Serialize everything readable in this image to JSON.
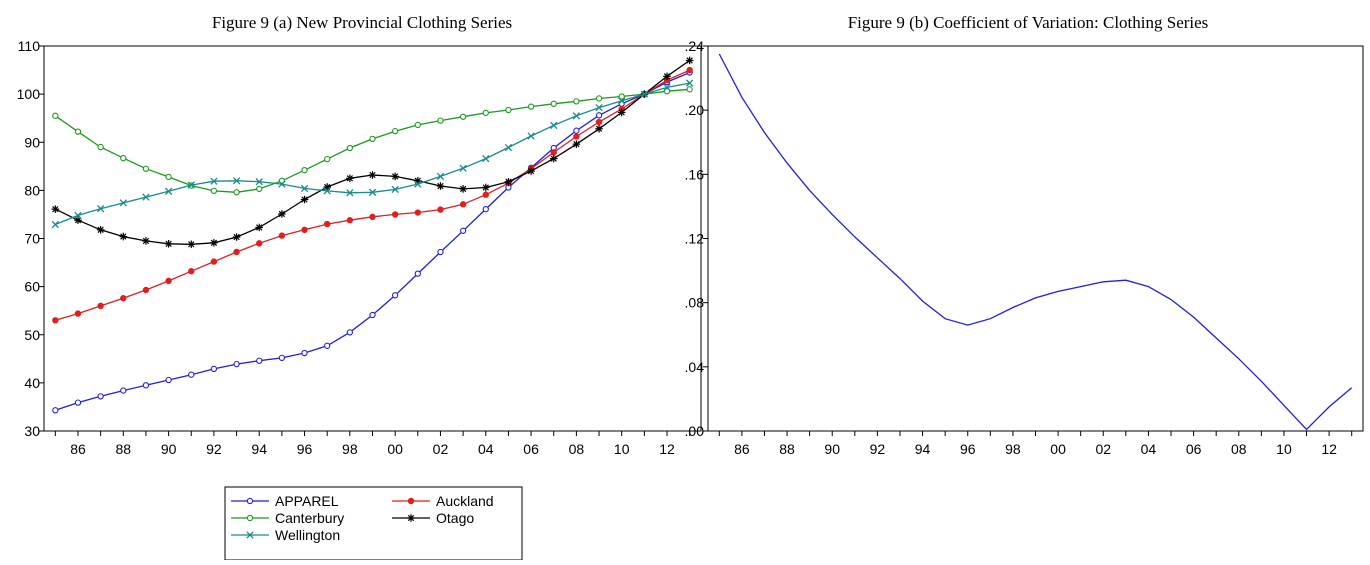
{
  "charts": [
    {
      "id": "a",
      "title": "Figure 9 (a) New Provincial Clothing Series",
      "type": "line",
      "x_tick_labels": [
        "86",
        "88",
        "90",
        "92",
        "94",
        "96",
        "98",
        "00",
        "02",
        "04",
        "06",
        "08",
        "10",
        "12"
      ],
      "y_tick_labels": [
        "30",
        "40",
        "50",
        "60",
        "70",
        "80",
        "90",
        "100",
        "110"
      ],
      "xlim": [
        1984.5,
        2013.5
      ],
      "ylim": [
        30,
        110
      ],
      "x": [
        1985,
        1986,
        1987,
        1988,
        1989,
        1990,
        1991,
        1992,
        1993,
        1994,
        1995,
        1996,
        1997,
        1998,
        1999,
        2000,
        2001,
        2002,
        2003,
        2004,
        2005,
        2006,
        2007,
        2008,
        2009,
        2010,
        2011,
        2012,
        2013
      ],
      "legend_position": "below",
      "series": [
        {
          "name": "APPAREL",
          "color": "#1f1fe0",
          "marker": "circle",
          "values": [
            34.3,
            35.9,
            37.2,
            38.4,
            39.5,
            40.6,
            41.7,
            42.9,
            43.9,
            44.6,
            45.2,
            46.2,
            47.7,
            50.5,
            54.1,
            58.2,
            62.7,
            67.2,
            71.6,
            76.1,
            80.6,
            84.7,
            88.8,
            92.4,
            95.6,
            98.0,
            100.0,
            102.5,
            104.5
          ]
        },
        {
          "name": "Auckland",
          "color": "#e01f1f",
          "marker": "dot",
          "values": [
            53.0,
            54.4,
            56.0,
            57.6,
            59.3,
            61.2,
            63.2,
            65.2,
            67.2,
            69.0,
            70.6,
            71.8,
            73.0,
            73.8,
            74.5,
            75.0,
            75.4,
            76.0,
            77.1,
            79.1,
            81.5,
            84.5,
            87.9,
            91.2,
            94.2,
            96.9,
            100.0,
            102.9,
            105.0
          ]
        },
        {
          "name": "Canterbury",
          "color": "#1a9a1a",
          "marker": "circle",
          "values": [
            95.5,
            92.2,
            89.0,
            86.7,
            84.5,
            82.8,
            81.0,
            79.9,
            79.6,
            80.3,
            82.0,
            84.2,
            86.5,
            88.8,
            90.7,
            92.3,
            93.6,
            94.5,
            95.3,
            96.1,
            96.7,
            97.4,
            98.0,
            98.5,
            99.1,
            99.5,
            100.0,
            100.6,
            101.0
          ]
        },
        {
          "name": "Otago",
          "color": "#000000",
          "marker": "star",
          "values": [
            76.1,
            73.8,
            71.8,
            70.4,
            69.5,
            68.9,
            68.8,
            69.1,
            70.3,
            72.3,
            75.1,
            78.1,
            80.7,
            82.5,
            83.2,
            82.9,
            82.0,
            80.9,
            80.3,
            80.6,
            81.8,
            84.0,
            86.6,
            89.6,
            92.8,
            96.2,
            100.0,
            103.7,
            107.0
          ]
        },
        {
          "name": "Wellington",
          "color": "#1a8a8a",
          "marker": "x",
          "values": [
            72.9,
            74.8,
            76.2,
            77.4,
            78.6,
            79.8,
            81.1,
            81.9,
            82.0,
            81.8,
            81.3,
            80.4,
            79.9,
            79.5,
            79.6,
            80.2,
            81.3,
            82.9,
            84.6,
            86.6,
            88.9,
            91.3,
            93.5,
            95.5,
            97.2,
            98.6,
            100.0,
            101.4,
            102.3
          ]
        }
      ]
    },
    {
      "id": "b",
      "title": "Figure 9 (b) Coefficient of Variation: Clothing Series",
      "type": "line",
      "x_tick_labels": [
        "86",
        "88",
        "90",
        "92",
        "94",
        "96",
        "98",
        "00",
        "02",
        "04",
        "06",
        "08",
        "10",
        "12"
      ],
      "y_tick_labels": [
        ".00",
        ".04",
        ".08",
        ".12",
        ".16",
        ".20",
        ".24"
      ],
      "xlim": [
        1984.5,
        2013.5
      ],
      "ylim": [
        0.0,
        0.24
      ],
      "x": [
        1985,
        1986,
        1987,
        1988,
        1989,
        1990,
        1991,
        1992,
        1993,
        1994,
        1995,
        1996,
        1997,
        1998,
        1999,
        2000,
        2001,
        2002,
        2003,
        2004,
        2005,
        2006,
        2007,
        2008,
        2009,
        2010,
        2011,
        2012,
        2013
      ],
      "series": [
        {
          "color": "#1f1fe0",
          "values": [
            0.235,
            0.208,
            0.186,
            0.167,
            0.15,
            0.135,
            0.121,
            0.108,
            0.095,
            0.081,
            0.07,
            0.066,
            0.07,
            0.077,
            0.083,
            0.087,
            0.09,
            0.093,
            0.094,
            0.09,
            0.082,
            0.071,
            0.058,
            0.045,
            0.031,
            0.016,
            0.001,
            0.015,
            0.027
          ]
        }
      ]
    }
  ]
}
